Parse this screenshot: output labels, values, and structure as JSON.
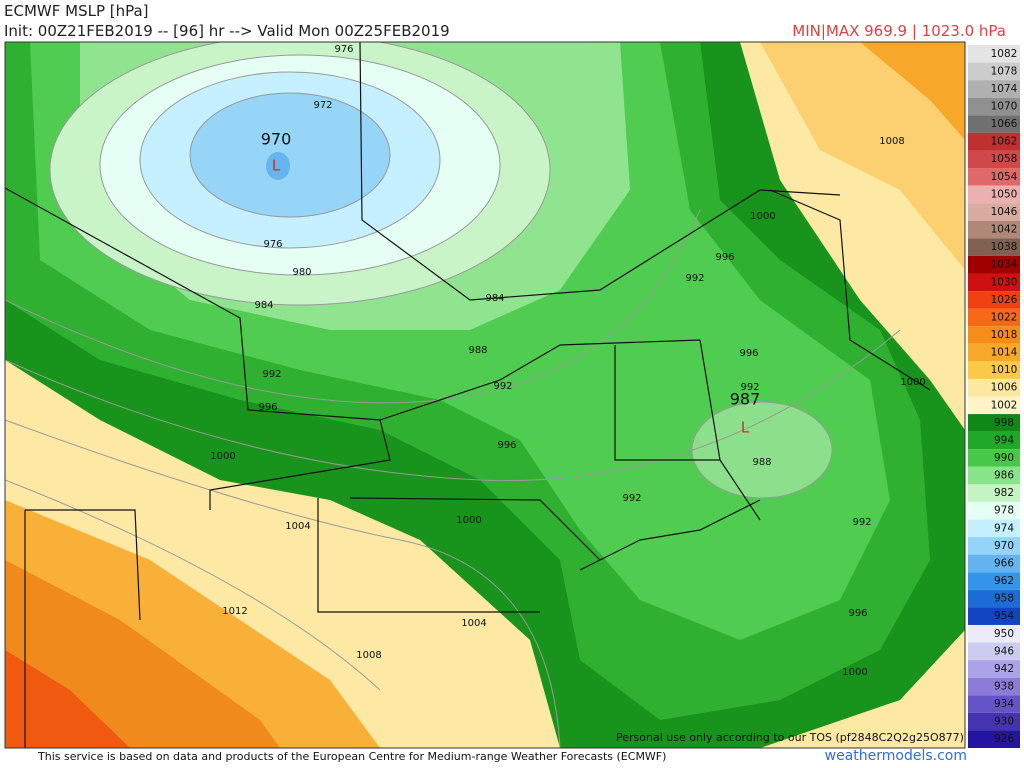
{
  "header": {
    "title": "ECMWF MSLP [hPa]",
    "init": "Init: 00Z21FEB2019 -- [96] hr --> Valid Mon 00Z25FEB2019",
    "minmax": "MIN|MAX 969.9 | 1023.0 hPa"
  },
  "map": {
    "lows": [
      {
        "value": "970",
        "symbol": "L"
      },
      {
        "value": "987",
        "symbol": "L"
      }
    ],
    "contour_labels": [
      "976",
      "972",
      "976",
      "980",
      "984",
      "984",
      "988",
      "992",
      "992",
      "996",
      "1000",
      "996",
      "1004",
      "1000",
      "1012",
      "1004",
      "1008",
      "992",
      "992",
      "996",
      "1000",
      "1008",
      "996",
      "992",
      "988",
      "992",
      "996",
      "1000",
      "1000"
    ]
  },
  "colorbar": {
    "items": [
      {
        "label": "1082",
        "color": "#e4e4e4"
      },
      {
        "label": "1078",
        "color": "#cccccc"
      },
      {
        "label": "1074",
        "color": "#b0b0b0"
      },
      {
        "label": "1070",
        "color": "#909090"
      },
      {
        "label": "1066",
        "color": "#707070"
      },
      {
        "label": "1062",
        "color": "#c03030"
      },
      {
        "label": "1058",
        "color": "#d04848"
      },
      {
        "label": "1054",
        "color": "#e06868"
      },
      {
        "label": "1050",
        "color": "#ecb0b0"
      },
      {
        "label": "1046",
        "color": "#d8aaa0"
      },
      {
        "label": "1042",
        "color": "#b08878"
      },
      {
        "label": "1038",
        "color": "#806050"
      },
      {
        "label": "1034",
        "color": "#a00000"
      },
      {
        "label": "1030",
        "color": "#d01010"
      },
      {
        "label": "1026",
        "color": "#f04010"
      },
      {
        "label": "1022",
        "color": "#f86818"
      },
      {
        "label": "1018",
        "color": "#f88c18"
      },
      {
        "label": "1014",
        "color": "#f8a828"
      },
      {
        "label": "1010",
        "color": "#fcc848"
      },
      {
        "label": "1006",
        "color": "#fce8a0"
      },
      {
        "label": "1002",
        "color": "#fff4c8"
      },
      {
        "label": "998",
        "color": "#108818"
      },
      {
        "label": "994",
        "color": "#20a828"
      },
      {
        "label": "990",
        "color": "#48c848"
      },
      {
        "label": "986",
        "color": "#88e488"
      },
      {
        "label": "982",
        "color": "#c4f4c4"
      },
      {
        "label": "978",
        "color": "#e4fff4"
      },
      {
        "label": "974",
        "color": "#c4f0ff"
      },
      {
        "label": "970",
        "color": "#94d4f8"
      },
      {
        "label": "966",
        "color": "#64b4f0"
      },
      {
        "label": "962",
        "color": "#3494e8"
      },
      {
        "label": "958",
        "color": "#1c6cd8"
      },
      {
        "label": "954",
        "color": "#1044c0"
      },
      {
        "label": "950",
        "color": "#ececf8"
      },
      {
        "label": "946",
        "color": "#ccccf0"
      },
      {
        "label": "942",
        "color": "#aca4e8"
      },
      {
        "label": "938",
        "color": "#8c7cd8"
      },
      {
        "label": "934",
        "color": "#6454c8"
      },
      {
        "label": "930",
        "color": "#4434b0"
      },
      {
        "label": "926",
        "color": "#2414a0"
      }
    ]
  },
  "footer": {
    "source": "This service is based on data and products of the European Centre for Medium-range Weather Forecasts (ECMWF)",
    "tos": "Personal use only according to our TOS (pf2848C2Q2g25O877)",
    "site": "weathermodels.com"
  }
}
